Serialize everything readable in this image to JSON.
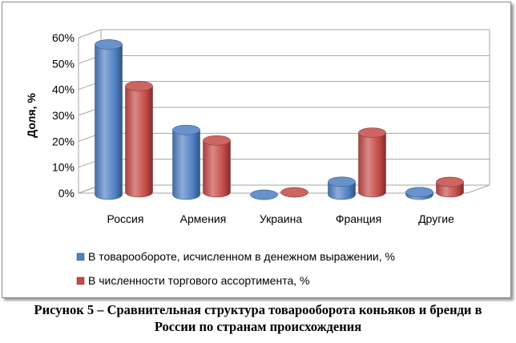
{
  "chart_data": {
    "type": "bar",
    "categories": [
      "Россия",
      "Армения",
      "Украина",
      "Франция",
      "Другие"
    ],
    "series": [
      {
        "name": "В товарообороте, исчисленном в денежном выражении, %",
        "values": [
          58,
          25,
          0,
          5,
          1
        ],
        "color": "#4f7fc4"
      },
      {
        "name": "В численности торгового ассортимента, %",
        "values": [
          41,
          20,
          0,
          23,
          4
        ],
        "color": "#c44a46"
      }
    ],
    "ylabel": "Доля, %",
    "ylim": [
      0,
      60
    ],
    "yticks": [
      "0%",
      "10%",
      "20%",
      "30%",
      "40%",
      "50%",
      "60%"
    ],
    "grid": true,
    "legend": "bottom",
    "bar_style": "3d-cylinder"
  },
  "caption": {
    "line1": "Рисунок 5 – Сравнительная структура товарооборота коньяков и бренди в",
    "line2": "России по странам происхождения"
  }
}
